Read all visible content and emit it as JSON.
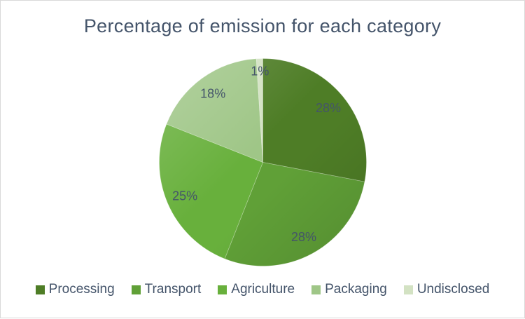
{
  "chart_data": {
    "type": "pie",
    "title": "Percentage of emission for each category",
    "categories": [
      "Processing",
      "Transport",
      "Agriculture",
      "Packaging",
      "Undisclosed"
    ],
    "values": [
      28,
      28,
      25,
      18,
      1
    ],
    "labels": [
      "28%",
      "28%",
      "25%",
      "18%",
      "1%"
    ],
    "colors": [
      "#4e7d26",
      "#60a037",
      "#68b03c",
      "#9fc687",
      "#d3e2c3"
    ],
    "start_angle_deg": 0,
    "direction": "clockwise",
    "title_color": "#44546a",
    "label_color": "#44546a",
    "legend_text_color": "#44546a",
    "legend_position": "bottom"
  }
}
